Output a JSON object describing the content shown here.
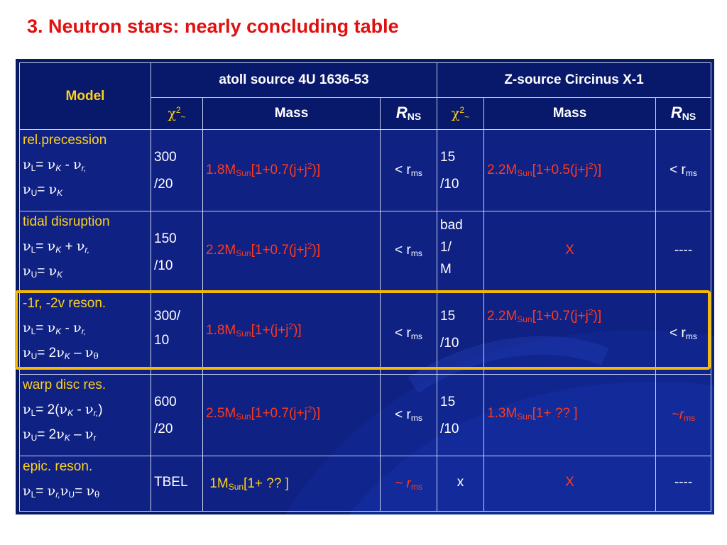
{
  "title": "3. Neutron stars:  nearly concluding table",
  "header": {
    "model": "Model",
    "atoll": "atoll source 4U 1636-53",
    "zsource": "Z-source Circinus X-1",
    "chi": "χ",
    "chi_sup": "2",
    "chi_sub": "~",
    "mass": "Mass",
    "r": "R",
    "r_sub": "NS"
  },
  "rows": [
    {
      "model_name": "rel.precession",
      "nu_L": "ν",
      "atoll_chi": [
        "300",
        "/20"
      ],
      "atoll_mass": {
        "pre": "1.8M",
        "sub": "Sun",
        "post": "[1+0.7(j+j",
        "sup": "2",
        "end": ")]"
      },
      "atoll_r": "< r",
      "z_chi": [
        "15",
        "/10"
      ],
      "z_mass": {
        "pre": "2.2M",
        "sub": "Sun",
        "post": "[1+0.5(j+j",
        "sup": "2",
        "end": ")]"
      },
      "z_r": "< r"
    },
    {
      "model_name": "tidal disruption",
      "atoll_chi": [
        "150",
        "/10"
      ],
      "atoll_mass": {
        "pre": "2.2M",
        "sub": "Sun",
        "post": "[1+0.7(j+j",
        "sup": "2",
        "end": ")]"
      },
      "atoll_r": "< r",
      "z_chi": [
        "bad",
        "1/",
        "M"
      ],
      "z_mass_text": "X",
      "z_r": "----"
    },
    {
      "model_name": "-1r, -2v reson.",
      "atoll_chi": [
        "300/",
        "10"
      ],
      "atoll_mass": {
        "pre": "1.8M",
        "sub": "Sun",
        "post": "[1+(j+j",
        "sup": "2",
        "end": ")]"
      },
      "atoll_r": "< r",
      "z_chi": [
        "15",
        "/10"
      ],
      "z_mass": {
        "pre": "2.2M",
        "sub": "Sun",
        "post": "[1+0.7(j+j",
        "sup": "2",
        "end": ")]"
      },
      "z_r": "< r"
    },
    {
      "model_name": "warp disc res.",
      "atoll_chi": [
        "600",
        "/20"
      ],
      "atoll_mass": {
        "pre": "2.5M",
        "sub": "Sun",
        "post": "[1+0.7(j+j",
        "sup": "2",
        "end": ")]"
      },
      "atoll_r": "< r",
      "z_chi": [
        "15",
        "/10"
      ],
      "z_mass": {
        "pre": "1.3M",
        "sub": "Sun",
        "post": "[1+ ?? ]"
      },
      "z_r": "~r"
    },
    {
      "model_name": "epic. reson.",
      "atoll_chi": [
        "TBEL"
      ],
      "atoll_mass": {
        "pre": "1M",
        "sub": "Sun",
        "post": "[1+ ?? ]"
      },
      "atoll_r": "~ r",
      "z_chi": [
        "x"
      ],
      "z_mass_text": "X",
      "z_r": "----"
    }
  ],
  "ms": "ms",
  "colors": {
    "title": "#e01010",
    "table_bg": "#081a66",
    "model_name": "#ffd21a",
    "mass": "#ff3a1a",
    "highlight": "#f6b800"
  }
}
